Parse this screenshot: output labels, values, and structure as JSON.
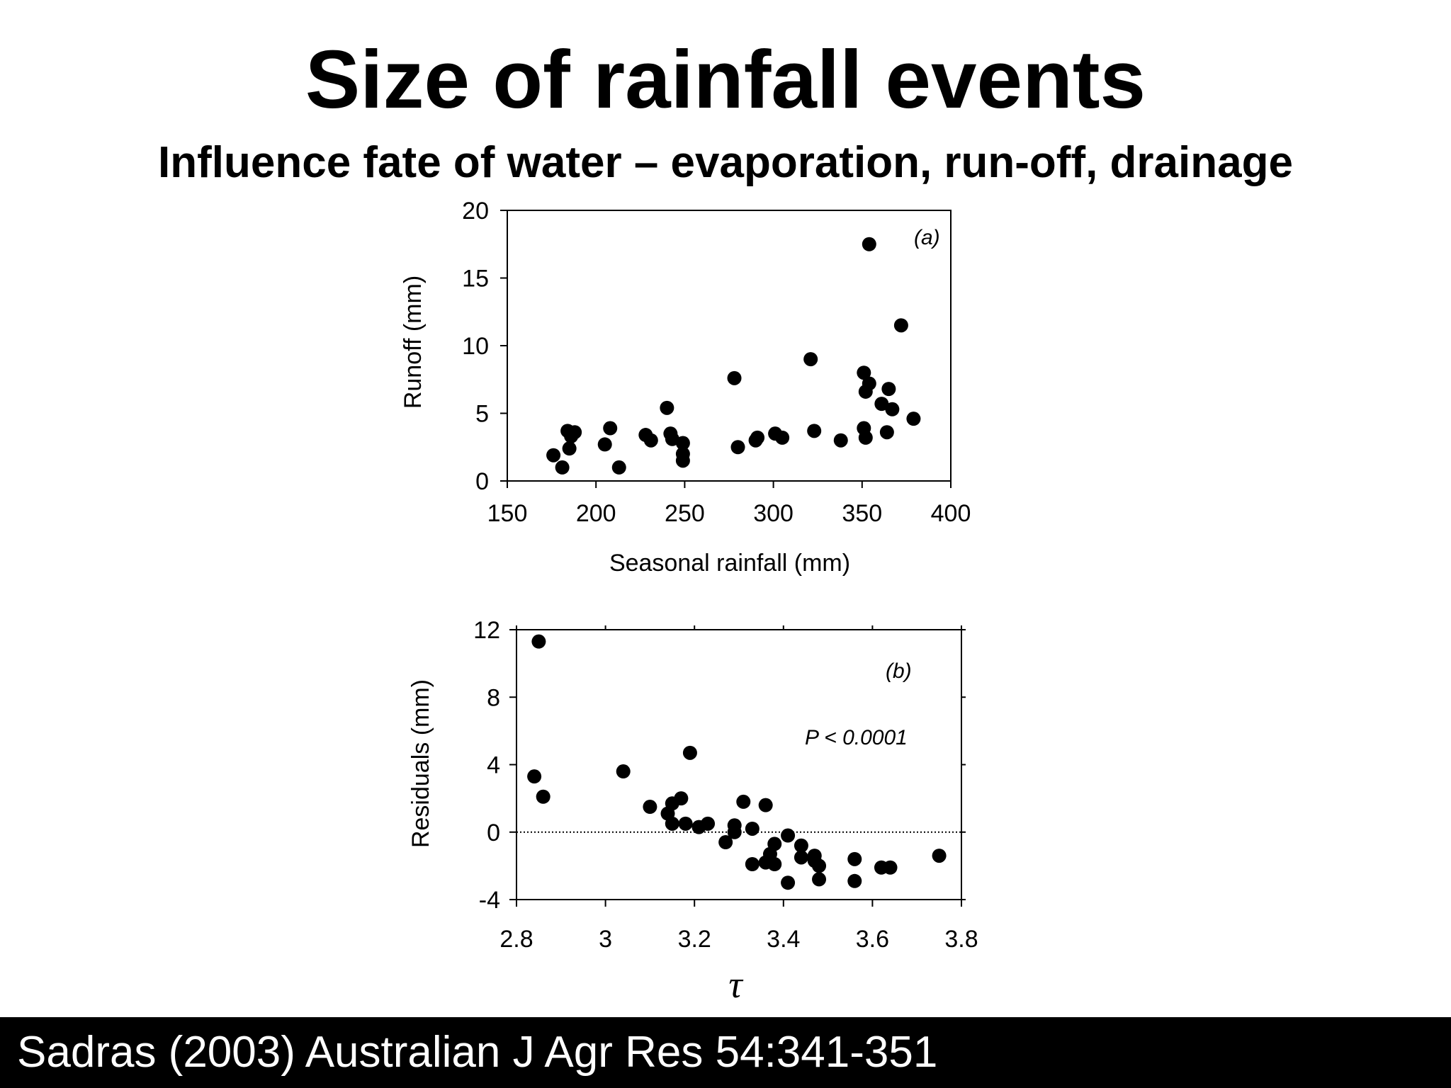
{
  "slide": {
    "title": "Size of rainfall events",
    "subtitle": "Influence fate of water – evaporation, run-off, drainage",
    "footer": "Sadras (2003) Australian J Agr Res 54:341-351"
  },
  "chart_data": [
    {
      "type": "scatter",
      "panel_label": "(a)",
      "xlabel": "Seasonal rainfall (mm)",
      "ylabel": "Runoff (mm)",
      "xlim": [
        150,
        400
      ],
      "ylim": [
        0,
        20
      ],
      "xticks": [
        "150",
        "200",
        "250",
        "300",
        "350",
        "400"
      ],
      "yticks": [
        "0",
        "5",
        "10",
        "15",
        "20"
      ],
      "xtick_values": [
        150,
        200,
        250,
        300,
        350,
        400
      ],
      "ytick_values": [
        0,
        5,
        10,
        15,
        20
      ],
      "grid": false,
      "marker_color": "#000000",
      "points": [
        [
          176,
          1.9
        ],
        [
          181,
          1.0
        ],
        [
          184,
          3.7
        ],
        [
          185,
          2.4
        ],
        [
          186,
          3.3
        ],
        [
          188,
          3.6
        ],
        [
          205,
          2.7
        ],
        [
          208,
          3.9
        ],
        [
          213,
          1.0
        ],
        [
          228,
          3.4
        ],
        [
          231,
          3.0
        ],
        [
          240,
          5.4
        ],
        [
          242,
          3.5
        ],
        [
          243,
          3.1
        ],
        [
          249,
          2.8
        ],
        [
          249,
          2.0
        ],
        [
          249,
          1.5
        ],
        [
          278,
          7.6
        ],
        [
          280,
          2.5
        ],
        [
          290,
          3.0
        ],
        [
          291,
          3.2
        ],
        [
          301,
          3.5
        ],
        [
          305,
          3.2
        ],
        [
          321,
          9.0
        ],
        [
          323,
          3.7
        ],
        [
          338,
          3.0
        ],
        [
          351,
          8.0
        ],
        [
          351,
          3.9
        ],
        [
          352,
          3.2
        ],
        [
          352,
          6.6
        ],
        [
          354,
          7.2
        ],
        [
          354,
          17.5
        ],
        [
          361,
          5.7
        ],
        [
          364,
          3.6
        ],
        [
          365,
          6.8
        ],
        [
          367,
          5.3
        ],
        [
          372,
          11.5
        ],
        [
          379,
          4.6
        ]
      ]
    },
    {
      "type": "scatter",
      "panel_label": "(b)",
      "annotation": "P < 0.0001",
      "xlabel": "τ",
      "ylabel": "Residuals (mm)",
      "xlim": [
        2.8,
        3.8
      ],
      "ylim": [
        -4,
        12
      ],
      "xticks": [
        "2.8",
        "3",
        "3.2",
        "3.4",
        "3.6",
        "3.8"
      ],
      "yticks": [
        "-4",
        "0",
        "4",
        "8",
        "12"
      ],
      "xtick_values": [
        2.8,
        3.0,
        3.2,
        3.4,
        3.6,
        3.8
      ],
      "ytick_values": [
        -4,
        0,
        4,
        8,
        12
      ],
      "reference_line_y": 0,
      "grid": false,
      "marker_color": "#000000",
      "points": [
        [
          2.84,
          3.3
        ],
        [
          2.85,
          11.3
        ],
        [
          2.86,
          2.1
        ],
        [
          3.04,
          3.6
        ],
        [
          3.1,
          1.5
        ],
        [
          3.14,
          1.1
        ],
        [
          3.15,
          1.7
        ],
        [
          3.15,
          0.5
        ],
        [
          3.17,
          2.0
        ],
        [
          3.18,
          0.5
        ],
        [
          3.19,
          4.7
        ],
        [
          3.21,
          0.3
        ],
        [
          3.23,
          0.5
        ],
        [
          3.27,
          -0.6
        ],
        [
          3.29,
          0.4
        ],
        [
          3.29,
          0.0
        ],
        [
          3.31,
          1.8
        ],
        [
          3.33,
          0.2
        ],
        [
          3.33,
          -1.9
        ],
        [
          3.36,
          1.6
        ],
        [
          3.36,
          -1.8
        ],
        [
          3.37,
          -1.3
        ],
        [
          3.38,
          -0.7
        ],
        [
          3.38,
          -1.9
        ],
        [
          3.41,
          -0.2
        ],
        [
          3.41,
          -3.0
        ],
        [
          3.44,
          -0.8
        ],
        [
          3.44,
          -1.5
        ],
        [
          3.47,
          -1.4
        ],
        [
          3.47,
          -1.7
        ],
        [
          3.48,
          -2.0
        ],
        [
          3.48,
          -2.8
        ],
        [
          3.56,
          -1.6
        ],
        [
          3.56,
          -2.9
        ],
        [
          3.62,
          -2.1
        ],
        [
          3.64,
          -2.1
        ],
        [
          3.75,
          -1.4
        ]
      ]
    }
  ]
}
